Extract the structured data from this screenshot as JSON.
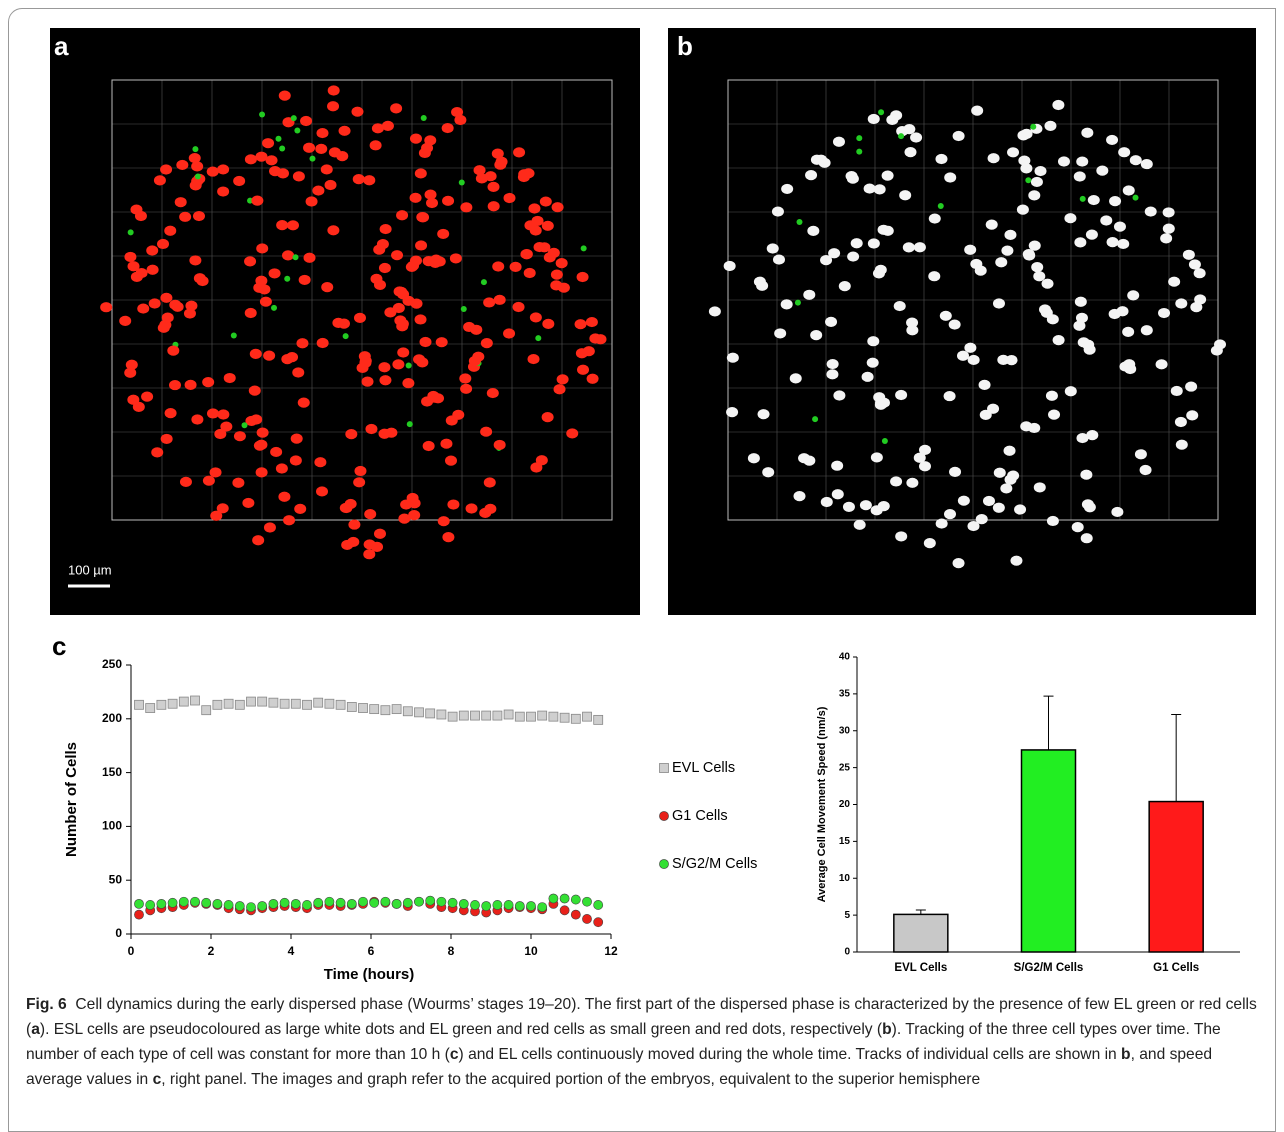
{
  "panels": {
    "a": "a",
    "b": "b",
    "c": "c",
    "scale_bar": "100 µm"
  },
  "chart_data": [
    {
      "type": "scatter",
      "xlabel": "Time (hours)",
      "ylabel": "Number of Cells",
      "xlim": [
        0,
        12
      ],
      "xticks": [
        0,
        2,
        4,
        6,
        8,
        10,
        12
      ],
      "ylim": [
        0,
        250
      ],
      "yticks": [
        0,
        50,
        100,
        150,
        200,
        250
      ],
      "legend": "right",
      "x": [
        0.2,
        0.48,
        0.76,
        1.04,
        1.32,
        1.6,
        1.88,
        2.16,
        2.44,
        2.72,
        3.0,
        3.28,
        3.56,
        3.84,
        4.12,
        4.4,
        4.68,
        4.96,
        5.24,
        5.52,
        5.8,
        6.08,
        6.36,
        6.64,
        6.92,
        7.2,
        7.48,
        7.76,
        8.04,
        8.32,
        8.6,
        8.88,
        9.16,
        9.44,
        9.72,
        10.0,
        10.28,
        10.56,
        10.84,
        11.12,
        11.4,
        11.68
      ],
      "series": [
        {
          "name": "EVL Cells",
          "color": "#cfcfcf",
          "marker": "square",
          "values": [
            213,
            210,
            213,
            214,
            216,
            217,
            208,
            213,
            214,
            213,
            216,
            216,
            215,
            214,
            214,
            213,
            215,
            214,
            213,
            211,
            210,
            209,
            208,
            209,
            207,
            206,
            205,
            204,
            202,
            203,
            203,
            203,
            203,
            204,
            202,
            202,
            203,
            202,
            201,
            200,
            202,
            199
          ]
        },
        {
          "name": "G1 Cells",
          "color": "#e8211a",
          "marker": "circle",
          "values": [
            18,
            22,
            24,
            25,
            27,
            29,
            28,
            27,
            24,
            23,
            22,
            24,
            25,
            26,
            25,
            24,
            27,
            27,
            26,
            27,
            28,
            30,
            29,
            28,
            26,
            30,
            28,
            25,
            24,
            22,
            21,
            20,
            22,
            24,
            25,
            24,
            23,
            28,
            22,
            18,
            14,
            11
          ]
        },
        {
          "name": "S/G2/M Cells",
          "color": "#34e034",
          "marker": "circle",
          "values": [
            28,
            27,
            28,
            29,
            30,
            30,
            29,
            28,
            27,
            26,
            25,
            26,
            28,
            29,
            28,
            27,
            29,
            30,
            29,
            28,
            30,
            29,
            30,
            28,
            29,
            30,
            31,
            30,
            29,
            28,
            27,
            26,
            27,
            27,
            26,
            26,
            25,
            33,
            33,
            32,
            30,
            27
          ]
        }
      ]
    },
    {
      "type": "bar",
      "ylabel": "Average Cell Movement Speed (nm/s)",
      "categories": [
        "EVL Cells",
        "S/G2/M Cells",
        "G1 Cells"
      ],
      "values": [
        5.1,
        27.4,
        20.4
      ],
      "errors": [
        0.6,
        7.3,
        11.8
      ],
      "colors": [
        "#c8c8c8",
        "#22ee22",
        "#ff1a1a"
      ],
      "ylim": [
        0,
        40
      ],
      "yticks": [
        0,
        5,
        10,
        15,
        20,
        25,
        30,
        35,
        40
      ]
    }
  ],
  "caption": {
    "label": "Fig. 6",
    "parts": [
      "Cell dynamics during the early dispersed phase (Wourms’ stages 19–20). The first part of the dispersed phase is characterized by the presence of few EL green or red cells (",
      "a",
      "). ESL cells are pseudocoloured as large white dots and EL green and red cells as small green and red dots, respectively (",
      "b",
      "). Tracking of the three cell types over time. The number of each type of cell was constant for more than 10 h (",
      "c",
      ") and EL cells continuously moved during the whole time. Tracks of individual cells are shown in ",
      "b",
      ", and speed average values in ",
      "c",
      ", right panel. The images and graph refer to the acquired portion of the embryos, equivalent to the superior hemisphere"
    ]
  }
}
